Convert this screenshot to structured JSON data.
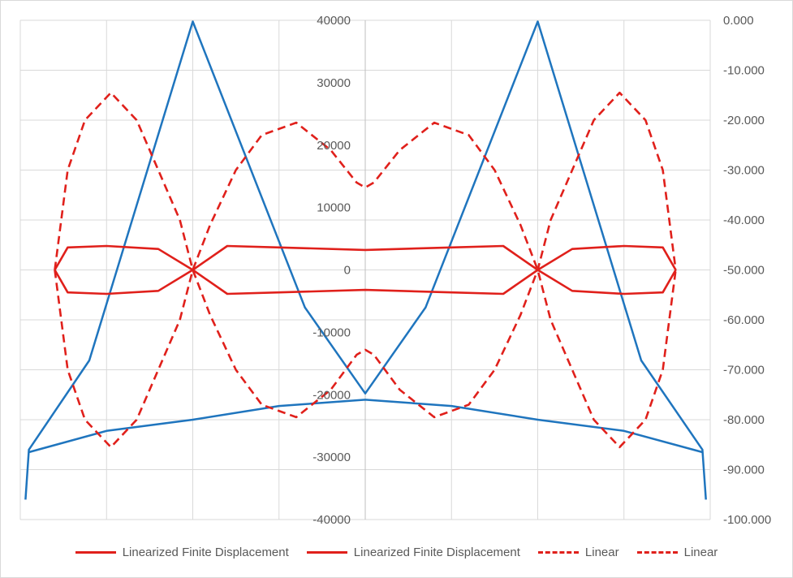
{
  "chart_data": {
    "type": "line",
    "x_range": [
      0,
      8
    ],
    "primary_axis": {
      "ylim": [
        -40000,
        40000
      ],
      "ticks": [
        "40000",
        "30000",
        "20000",
        "10000",
        "0",
        "-10000",
        "-20000",
        "-30000",
        "-40000"
      ],
      "tick_values": [
        40000,
        30000,
        20000,
        10000,
        0,
        -10000,
        -20000,
        -30000,
        -40000
      ]
    },
    "secondary_axis": {
      "ylim": [
        -100,
        0
      ],
      "ticks": [
        "0.000",
        "-10.000",
        "-20.000",
        "-30.000",
        "-40.000",
        "-50.000",
        "-60.000",
        "-70.000",
        "-80.000",
        "-90.000",
        "-100.000"
      ],
      "tick_values": [
        0,
        -10,
        -20,
        -30,
        -40,
        -50,
        -60,
        -70,
        -80,
        -90,
        -100
      ]
    },
    "grid": true,
    "legend_position": "bottom",
    "legend": [
      {
        "label": "Linearized Finite Displacement",
        "style": "solid",
        "color": "#e0201b"
      },
      {
        "label": "Linearized Finite Displacement",
        "style": "solid",
        "color": "#e0201b"
      },
      {
        "label": "Linear",
        "style": "dashed",
        "color": "#e0201b"
      },
      {
        "label": "Linear",
        "style": "dashed",
        "color": "#e0201b"
      }
    ],
    "series": [
      {
        "axis": "primary",
        "color": "#1f75be",
        "style": "solid",
        "points": [
          [
            0.06,
            -36800
          ],
          [
            0.1,
            -28800
          ],
          [
            0.8,
            -14500
          ],
          [
            2.0,
            39800
          ],
          [
            3.3,
            -6000
          ],
          [
            4.0,
            -19800
          ],
          [
            4.7,
            -6000
          ],
          [
            6.0,
            39800
          ],
          [
            7.2,
            -14500
          ],
          [
            7.91,
            -28800
          ],
          [
            7.95,
            -36800
          ]
        ]
      },
      {
        "axis": "primary",
        "color": "#1f75be",
        "style": "solid",
        "points": [
          [
            0.1,
            -29200
          ],
          [
            1.0,
            -25800
          ],
          [
            2.0,
            -24000
          ],
          [
            3.0,
            -21800
          ],
          [
            4.0,
            -20800
          ],
          [
            5.0,
            -21800
          ],
          [
            6.0,
            -24000
          ],
          [
            7.0,
            -25800
          ],
          [
            7.91,
            -29200
          ]
        ]
      },
      {
        "axis": "secondary",
        "color": "#e0201b",
        "style": "solid",
        "points": [
          [
            0.4,
            -50
          ],
          [
            0.55,
            -45.5
          ],
          [
            1.0,
            -45.2
          ],
          [
            1.6,
            -45.8
          ],
          [
            2.0,
            -50
          ],
          [
            2.4,
            -45.2
          ],
          [
            3.0,
            -45.5
          ],
          [
            4.0,
            -46.0
          ],
          [
            5.0,
            -45.5
          ],
          [
            5.6,
            -45.2
          ],
          [
            6.0,
            -50
          ],
          [
            6.4,
            -45.8
          ],
          [
            7.0,
            -45.2
          ],
          [
            7.45,
            -45.5
          ],
          [
            7.6,
            -50
          ]
        ]
      },
      {
        "axis": "secondary",
        "color": "#e0201b",
        "style": "solid",
        "points": [
          [
            0.4,
            -50
          ],
          [
            0.55,
            -54.5
          ],
          [
            1.0,
            -54.8
          ],
          [
            1.6,
            -54.2
          ],
          [
            2.0,
            -50
          ],
          [
            2.4,
            -54.8
          ],
          [
            3.0,
            -54.5
          ],
          [
            4.0,
            -54.0
          ],
          [
            5.0,
            -54.5
          ],
          [
            5.6,
            -54.8
          ],
          [
            6.0,
            -50
          ],
          [
            6.4,
            -54.2
          ],
          [
            7.0,
            -54.8
          ],
          [
            7.45,
            -54.5
          ],
          [
            7.6,
            -50
          ]
        ]
      },
      {
        "axis": "secondary",
        "color": "#e0201b",
        "style": "dashed",
        "points": [
          [
            0.4,
            -50
          ],
          [
            0.55,
            -30
          ],
          [
            0.75,
            -20
          ],
          [
            1.05,
            -14.5
          ],
          [
            1.35,
            -20
          ],
          [
            1.6,
            -30
          ],
          [
            1.85,
            -40
          ],
          [
            2.0,
            -50
          ],
          [
            2.2,
            -59
          ],
          [
            2.5,
            -70
          ],
          [
            2.8,
            -77
          ],
          [
            3.2,
            -79.5
          ],
          [
            3.6,
            -74
          ],
          [
            3.9,
            -67
          ],
          [
            4.0,
            -66
          ],
          [
            4.1,
            -67
          ],
          [
            4.4,
            -74
          ],
          [
            4.8,
            -79.5
          ],
          [
            5.2,
            -77
          ],
          [
            5.5,
            -70
          ],
          [
            5.8,
            -59
          ],
          [
            6.0,
            -50
          ],
          [
            6.15,
            -40
          ],
          [
            6.4,
            -30
          ],
          [
            6.65,
            -20
          ],
          [
            6.95,
            -14.5
          ],
          [
            7.25,
            -20
          ],
          [
            7.45,
            -30
          ],
          [
            7.6,
            -50
          ]
        ]
      },
      {
        "axis": "secondary",
        "color": "#e0201b",
        "style": "dashed",
        "points": [
          [
            0.4,
            -50
          ],
          [
            0.55,
            -70
          ],
          [
            0.75,
            -80
          ],
          [
            1.05,
            -85.5
          ],
          [
            1.35,
            -80
          ],
          [
            1.6,
            -70
          ],
          [
            1.85,
            -60
          ],
          [
            2.0,
            -50
          ],
          [
            2.2,
            -41
          ],
          [
            2.5,
            -30
          ],
          [
            2.8,
            -23
          ],
          [
            3.2,
            -20.5
          ],
          [
            3.6,
            -26
          ],
          [
            3.9,
            -32.5
          ],
          [
            4.0,
            -33.5
          ],
          [
            4.1,
            -32.5
          ],
          [
            4.4,
            -26
          ],
          [
            4.8,
            -20.5
          ],
          [
            5.2,
            -23
          ],
          [
            5.5,
            -30
          ],
          [
            5.8,
            -41
          ],
          [
            6.0,
            -50
          ],
          [
            6.15,
            -60
          ],
          [
            6.4,
            -70
          ],
          [
            6.65,
            -80
          ],
          [
            6.95,
            -85.5
          ],
          [
            7.25,
            -80
          ],
          [
            7.45,
            -70
          ],
          [
            7.6,
            -50
          ]
        ]
      }
    ]
  }
}
